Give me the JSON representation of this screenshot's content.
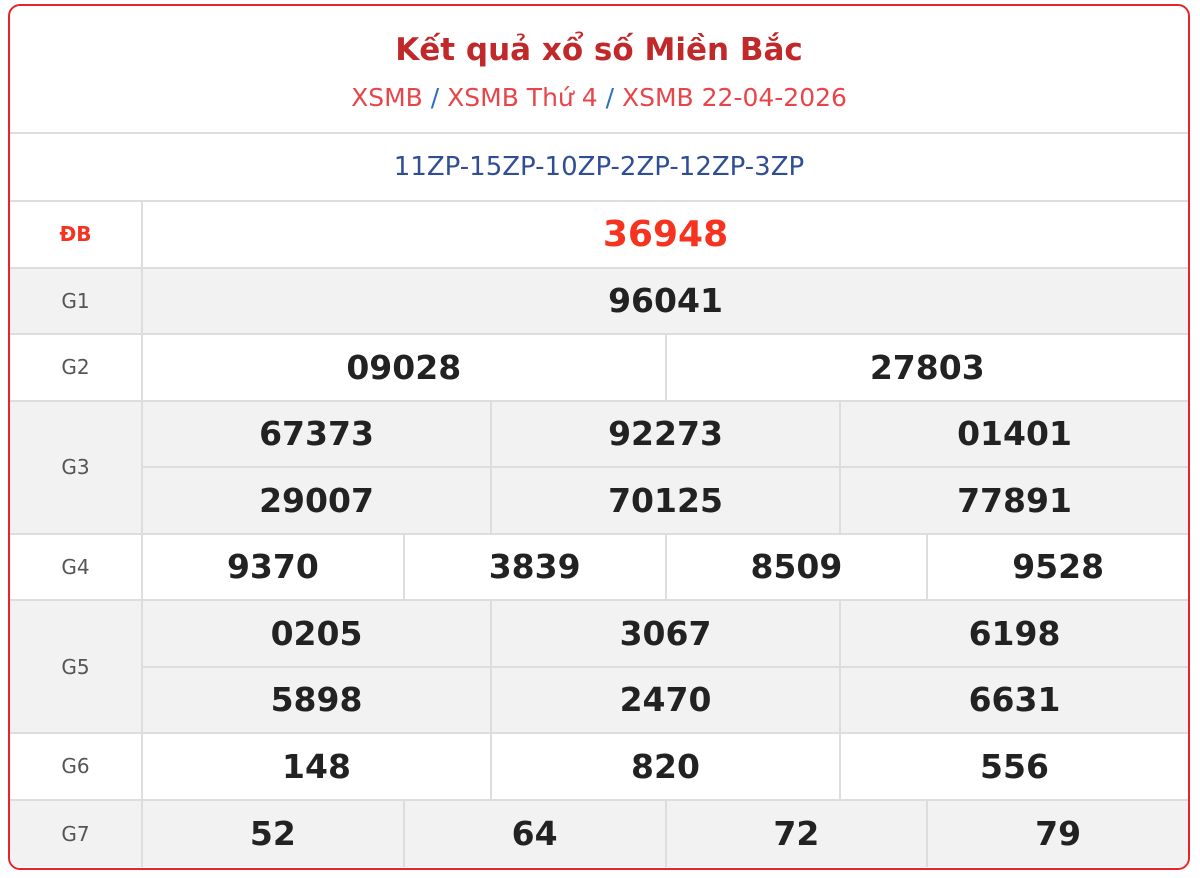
{
  "header": {
    "title": "Kết quả xổ số Miền Bắc",
    "breadcrumbs": [
      "XSMB",
      "XSMB Thứ 4",
      "XSMB 22-04-2026"
    ],
    "separator": "/"
  },
  "codes": "11ZP-15ZP-10ZP-2ZP-12ZP-3ZP",
  "colors": {
    "title": "#c0282a",
    "breadcrumb": "#e8454a",
    "codes": "#2f4e96",
    "special": "#f5331f",
    "border": "#e8232a"
  },
  "prizes": [
    {
      "label": "ĐB",
      "rows": [
        [
          "36948"
        ]
      ]
    },
    {
      "label": "G1",
      "rows": [
        [
          "96041"
        ]
      ]
    },
    {
      "label": "G2",
      "rows": [
        [
          "09028",
          "27803"
        ]
      ]
    },
    {
      "label": "G3",
      "rows": [
        [
          "67373",
          "92273",
          "01401"
        ],
        [
          "29007",
          "70125",
          "77891"
        ]
      ]
    },
    {
      "label": "G4",
      "rows": [
        [
          "9370",
          "3839",
          "8509",
          "9528"
        ]
      ]
    },
    {
      "label": "G5",
      "rows": [
        [
          "0205",
          "3067",
          "6198"
        ],
        [
          "5898",
          "2470",
          "6631"
        ]
      ]
    },
    {
      "label": "G6",
      "rows": [
        [
          "148",
          "820",
          "556"
        ]
      ]
    },
    {
      "label": "G7",
      "rows": [
        [
          "52",
          "64",
          "72",
          "79"
        ]
      ]
    }
  ]
}
